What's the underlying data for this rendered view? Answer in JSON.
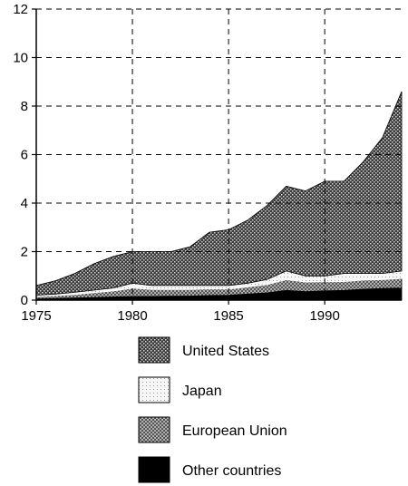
{
  "chart_data": {
    "type": "area",
    "stacked": true,
    "title": "",
    "xlabel": "",
    "ylabel": "",
    "xlim": [
      1975,
      1994
    ],
    "ylim": [
      0,
      12
    ],
    "x_ticks": [
      1975,
      1980,
      1985,
      1990
    ],
    "x_tick_labels": [
      "1975",
      "1980",
      "1985",
      "1990"
    ],
    "y_ticks": [
      0,
      2,
      4,
      6,
      8,
      10,
      12
    ],
    "y_tick_labels": [
      "0",
      "2",
      "4",
      "6",
      "8",
      "10",
      "12"
    ],
    "grid": true,
    "legend_position": "bottom",
    "x": [
      1975,
      1976,
      1977,
      1978,
      1979,
      1980,
      1981,
      1982,
      1983,
      1984,
      1985,
      1986,
      1987,
      1988,
      1989,
      1990,
      1991,
      1992,
      1993,
      1994
    ],
    "series": [
      {
        "name": "Other countries",
        "color": "#000000",
        "values": [
          0.05,
          0.07,
          0.09,
          0.11,
          0.13,
          0.15,
          0.15,
          0.16,
          0.17,
          0.19,
          0.2,
          0.25,
          0.3,
          0.4,
          0.35,
          0.38,
          0.4,
          0.45,
          0.48,
          0.5
        ]
      },
      {
        "name": "European Union",
        "color": "#7a7a7a",
        "values": [
          0.1,
          0.12,
          0.15,
          0.2,
          0.25,
          0.35,
          0.3,
          0.28,
          0.27,
          0.28,
          0.26,
          0.3,
          0.35,
          0.45,
          0.4,
          0.38,
          0.37,
          0.38,
          0.37,
          0.4
        ]
      },
      {
        "name": "Japan",
        "color": "#e4e4e4",
        "values": [
          0.05,
          0.06,
          0.08,
          0.1,
          0.12,
          0.2,
          0.15,
          0.16,
          0.16,
          0.13,
          0.14,
          0.15,
          0.2,
          0.35,
          0.25,
          0.24,
          0.33,
          0.27,
          0.25,
          0.3
        ]
      },
      {
        "name": "United States",
        "color": "#4a4a4a",
        "values": [
          0.4,
          0.55,
          0.78,
          1.09,
          1.3,
          1.3,
          1.4,
          1.4,
          1.6,
          2.2,
          2.3,
          2.6,
          3.05,
          3.5,
          3.5,
          3.9,
          3.8,
          4.6,
          5.6,
          7.4
        ]
      }
    ]
  }
}
